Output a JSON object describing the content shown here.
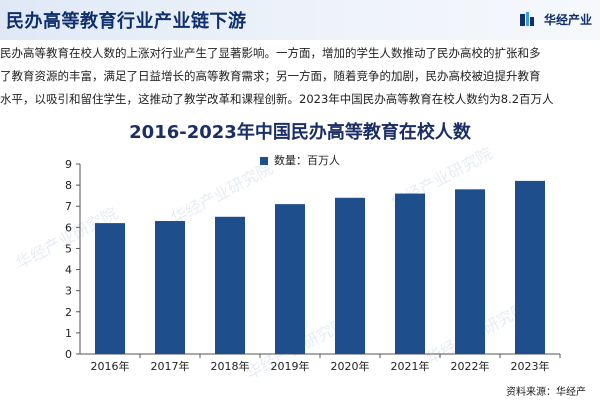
{
  "header": {
    "title": "民办高等教育行业产业链下游",
    "brand": "华经产业",
    "brand_color": "#0f2f6d"
  },
  "paragraph": {
    "lines": [
      "民办高等教育在校人数的上涨对行业产生了显著影响。一方面，增加的学生人数推动了民办高校的扩张和多",
      "了教育资源的丰富，满足了日益增长的高等教育需求；另一方面，随着竞争的加剧，民办高校被迫提升教育",
      "水平，以吸引和留住学生，这推动了教学改革和课程创新。2023年中国民办高等教育在校人数约为8.2百万人"
    ]
  },
  "watermarks": [
    "华经产业研究院",
    "华经产业研究院",
    "华经产业研究院",
    "华经产业研究院",
    "华经产业研究院"
  ],
  "source": "资料来源：华经产",
  "chart_data": {
    "type": "bar",
    "title": "2016-2023年中国民办高等教育在校人数",
    "legend": "数量：百万人",
    "legend_position": "top-center",
    "categories": [
      "2016年",
      "2017年",
      "2018年",
      "2019年",
      "2020年",
      "2021年",
      "2022年",
      "2023年"
    ],
    "series": [
      {
        "name": "数量：百万人",
        "values": [
          6.2,
          6.3,
          6.5,
          7.1,
          7.4,
          7.6,
          7.8,
          8.2
        ]
      }
    ],
    "ylim": [
      0,
      9
    ],
    "yticks": [
      0,
      1,
      2,
      3,
      4,
      5,
      6,
      7,
      8,
      9
    ],
    "bar_color": "#1f4e8c",
    "grid": false
  }
}
